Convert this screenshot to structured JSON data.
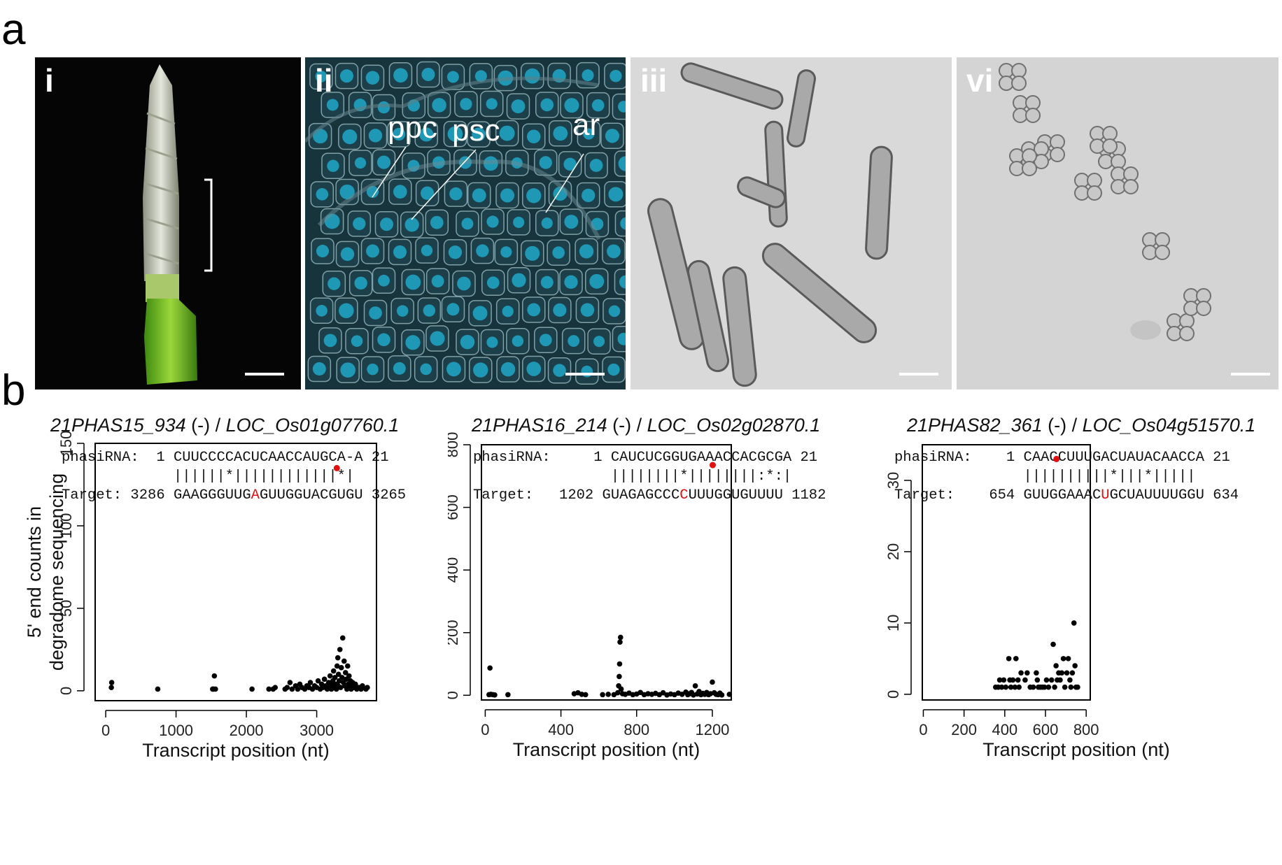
{
  "panel_a_label": "a",
  "panel_b_label": "b",
  "micrographs": [
    {
      "label": "i"
    },
    {
      "label": "ii",
      "cells": [
        "ppc",
        "psc",
        "ar"
      ]
    },
    {
      "label": "iii"
    },
    {
      "label": "vi"
    }
  ],
  "plots": [
    {
      "title_phas": "21PHAS15_934",
      "title_strand": " (-) / ",
      "title_loc": "LOC_Os01g07760.1",
      "alignment": {
        "row1_prefix": "phasiRNA:  1 ",
        "row1_seq": "CUUCCCCACUCAACCAUGCA-A",
        "row1_suffix": " 21",
        "row2_prefix": "             ",
        "row2_seq": "||||||*||||||||||||*|",
        "row3_prefix": "Target: 3286 ",
        "row3_pre": "GAAGGGUUG",
        "row3_hl": "A",
        "row3_post": "GUUGGUACGUGU",
        "row3_suffix": " 3265"
      }
    },
    {
      "title_phas": "21PHAS16_214",
      "title_strand": " (-) / ",
      "title_loc": "LOC_Os02g02870.1",
      "alignment": {
        "row1_prefix": "phasiRNA:     1 ",
        "row1_seq": "CAUCUCGGUGAAACCACGCGA",
        "row1_suffix": " 21",
        "row2_prefix": "                ",
        "row2_seq": "||||||||*||||||||:*:|",
        "row3_prefix": "Target:   1202 ",
        "row3_pre": "GUAGAGCCC",
        "row3_hl": "C",
        "row3_post": "UUUGGUGUUUU",
        "row3_suffix": " 1182"
      }
    },
    {
      "title_phas": "21PHAS82_361",
      "title_strand": " (-) / ",
      "title_loc": "LOC_Os04g51570.1",
      "alignment": {
        "row1_prefix": "phasiRNA:    1 ",
        "row1_seq": "CAACCUUUGACUAUACAACCA",
        "row1_suffix": " 21",
        "row2_prefix": "               ",
        "row2_seq": "||||||||||*|||*|||||",
        "row3_prefix": "Target:    654 ",
        "row3_pre": "GUUGGAAAC",
        "row3_hl": "U",
        "row3_post": "GCUAUUUUGGU",
        "row3_suffix": " 634"
      }
    }
  ],
  "chart_data": [
    {
      "type": "scatter",
      "xlabel": "Transcript position (nt)",
      "ylabel_line1": "5' end counts in",
      "ylabel_line2": "degradome sequencing",
      "xlim": [
        -150,
        3850
      ],
      "ylim": [
        -6,
        150
      ],
      "xticks": [
        0,
        1000,
        2000,
        3000
      ],
      "yticks": [
        0,
        50,
        100,
        150
      ],
      "highlight": {
        "x": 3286,
        "y": 135,
        "color": "#e01010"
      },
      "points": [
        [
          80,
          2
        ],
        [
          85,
          5
        ],
        [
          740,
          1
        ],
        [
          1520,
          1
        ],
        [
          1530,
          1
        ],
        [
          1545,
          9
        ],
        [
          1560,
          1
        ],
        [
          2080,
          1
        ],
        [
          2320,
          1
        ],
        [
          2380,
          1
        ],
        [
          2410,
          2
        ],
        [
          2550,
          1
        ],
        [
          2580,
          2
        ],
        [
          2620,
          5
        ],
        [
          2650,
          1
        ],
        [
          2700,
          3
        ],
        [
          2730,
          1
        ],
        [
          2760,
          4
        ],
        [
          2790,
          2
        ],
        [
          2830,
          1
        ],
        [
          2860,
          3
        ],
        [
          2890,
          2
        ],
        [
          2910,
          5
        ],
        [
          2940,
          1
        ],
        [
          2970,
          3
        ],
        [
          3000,
          2
        ],
        [
          3020,
          6
        ],
        [
          3050,
          1
        ],
        [
          3070,
          4
        ],
        [
          3090,
          2
        ],
        [
          3110,
          7
        ],
        [
          3130,
          3
        ],
        [
          3150,
          1
        ],
        [
          3170,
          5
        ],
        [
          3180,
          2
        ],
        [
          3190,
          9
        ],
        [
          3200,
          4
        ],
        [
          3210,
          1
        ],
        [
          3220,
          3
        ],
        [
          3230,
          6
        ],
        [
          3240,
          12
        ],
        [
          3250,
          2
        ],
        [
          3260,
          8
        ],
        [
          3270,
          4
        ],
        [
          3280,
          1
        ],
        [
          3290,
          15
        ],
        [
          3300,
          20
        ],
        [
          3305,
          3
        ],
        [
          3310,
          10
        ],
        [
          3320,
          6
        ],
        [
          3330,
          25
        ],
        [
          3340,
          2
        ],
        [
          3350,
          14
        ],
        [
          3360,
          8
        ],
        [
          3370,
          32
        ],
        [
          3380,
          5
        ],
        [
          3390,
          18
        ],
        [
          3400,
          3
        ],
        [
          3410,
          11
        ],
        [
          3420,
          7
        ],
        [
          3430,
          1
        ],
        [
          3440,
          15
        ],
        [
          3450,
          4
        ],
        [
          3460,
          9
        ],
        [
          3470,
          2
        ],
        [
          3480,
          6
        ],
        [
          3490,
          1
        ],
        [
          3500,
          3
        ],
        [
          3510,
          5
        ],
        [
          3530,
          2
        ],
        [
          3550,
          4
        ],
        [
          3570,
          1
        ],
        [
          3600,
          2
        ],
        [
          3630,
          1
        ],
        [
          3650,
          3
        ],
        [
          3700,
          1
        ],
        [
          3720,
          2
        ]
      ]
    },
    {
      "type": "scatter",
      "xlabel": "Transcript position (nt)",
      "xlim": [
        -20,
        1300
      ],
      "ylim": [
        -15,
        800
      ],
      "xticks": [
        0,
        400,
        800,
        1200
      ],
      "yticks": [
        0,
        200,
        400,
        600,
        800
      ],
      "highlight": {
        "x": 1202,
        "y": 735,
        "color": "#e01010"
      },
      "points": [
        [
          20,
          2
        ],
        [
          25,
          87
        ],
        [
          30,
          3
        ],
        [
          40,
          2
        ],
        [
          50,
          1
        ],
        [
          120,
          2
        ],
        [
          470,
          5
        ],
        [
          490,
          8
        ],
        [
          510,
          3
        ],
        [
          530,
          2
        ],
        [
          620,
          2
        ],
        [
          650,
          3
        ],
        [
          680,
          2
        ],
        [
          700,
          8
        ],
        [
          705,
          30
        ],
        [
          708,
          60
        ],
        [
          710,
          100
        ],
        [
          712,
          170
        ],
        [
          715,
          185
        ],
        [
          718,
          20
        ],
        [
          725,
          5
        ],
        [
          740,
          3
        ],
        [
          760,
          7
        ],
        [
          780,
          2
        ],
        [
          800,
          4
        ],
        [
          820,
          9
        ],
        [
          840,
          2
        ],
        [
          860,
          5
        ],
        [
          880,
          3
        ],
        [
          900,
          6
        ],
        [
          920,
          2
        ],
        [
          940,
          8
        ],
        [
          960,
          1
        ],
        [
          980,
          4
        ],
        [
          1000,
          2
        ],
        [
          1020,
          7
        ],
        [
          1040,
          3
        ],
        [
          1060,
          10
        ],
        [
          1070,
          2
        ],
        [
          1080,
          5
        ],
        [
          1090,
          9
        ],
        [
          1100,
          1
        ],
        [
          1110,
          30
        ],
        [
          1120,
          4
        ],
        [
          1130,
          12
        ],
        [
          1140,
          2
        ],
        [
          1150,
          6
        ],
        [
          1160,
          3
        ],
        [
          1170,
          9
        ],
        [
          1180,
          2
        ],
        [
          1190,
          5
        ],
        [
          1200,
          42
        ],
        [
          1210,
          8
        ],
        [
          1220,
          3
        ],
        [
          1230,
          2
        ],
        [
          1240,
          7
        ],
        [
          1250,
          1
        ],
        [
          1290,
          3
        ]
      ]
    },
    {
      "type": "scatter",
      "xlim": [
        -5,
        820
      ],
      "ylim": [
        -0.8,
        35
      ],
      "xticks": [
        0,
        200,
        400,
        600,
        800
      ],
      "yticks": [
        0,
        10,
        20,
        30
      ],
      "highlight": {
        "x": 654,
        "y": 33,
        "color": "#e01010"
      },
      "points": [
        [
          355,
          1
        ],
        [
          368,
          1
        ],
        [
          375,
          2
        ],
        [
          385,
          1
        ],
        [
          395,
          2
        ],
        [
          405,
          1
        ],
        [
          420,
          5
        ],
        [
          425,
          2
        ],
        [
          430,
          1
        ],
        [
          440,
          2
        ],
        [
          450,
          1
        ],
        [
          455,
          5
        ],
        [
          465,
          2
        ],
        [
          470,
          1
        ],
        [
          480,
          3
        ],
        [
          500,
          2
        ],
        [
          510,
          3
        ],
        [
          525,
          1
        ],
        [
          540,
          1
        ],
        [
          555,
          3
        ],
        [
          560,
          2
        ],
        [
          565,
          1
        ],
        [
          575,
          1
        ],
        [
          585,
          1
        ],
        [
          595,
          1
        ],
        [
          605,
          2
        ],
        [
          615,
          1
        ],
        [
          630,
          2
        ],
        [
          638,
          7
        ],
        [
          645,
          1
        ],
        [
          652,
          4
        ],
        [
          658,
          2
        ],
        [
          665,
          3
        ],
        [
          672,
          2
        ],
        [
          680,
          3
        ],
        [
          688,
          5
        ],
        [
          695,
          1
        ],
        [
          705,
          3
        ],
        [
          712,
          5
        ],
        [
          720,
          2
        ],
        [
          725,
          1
        ],
        [
          732,
          3
        ],
        [
          740,
          10
        ],
        [
          745,
          4
        ],
        [
          750,
          1
        ],
        [
          758,
          1
        ]
      ]
    }
  ]
}
